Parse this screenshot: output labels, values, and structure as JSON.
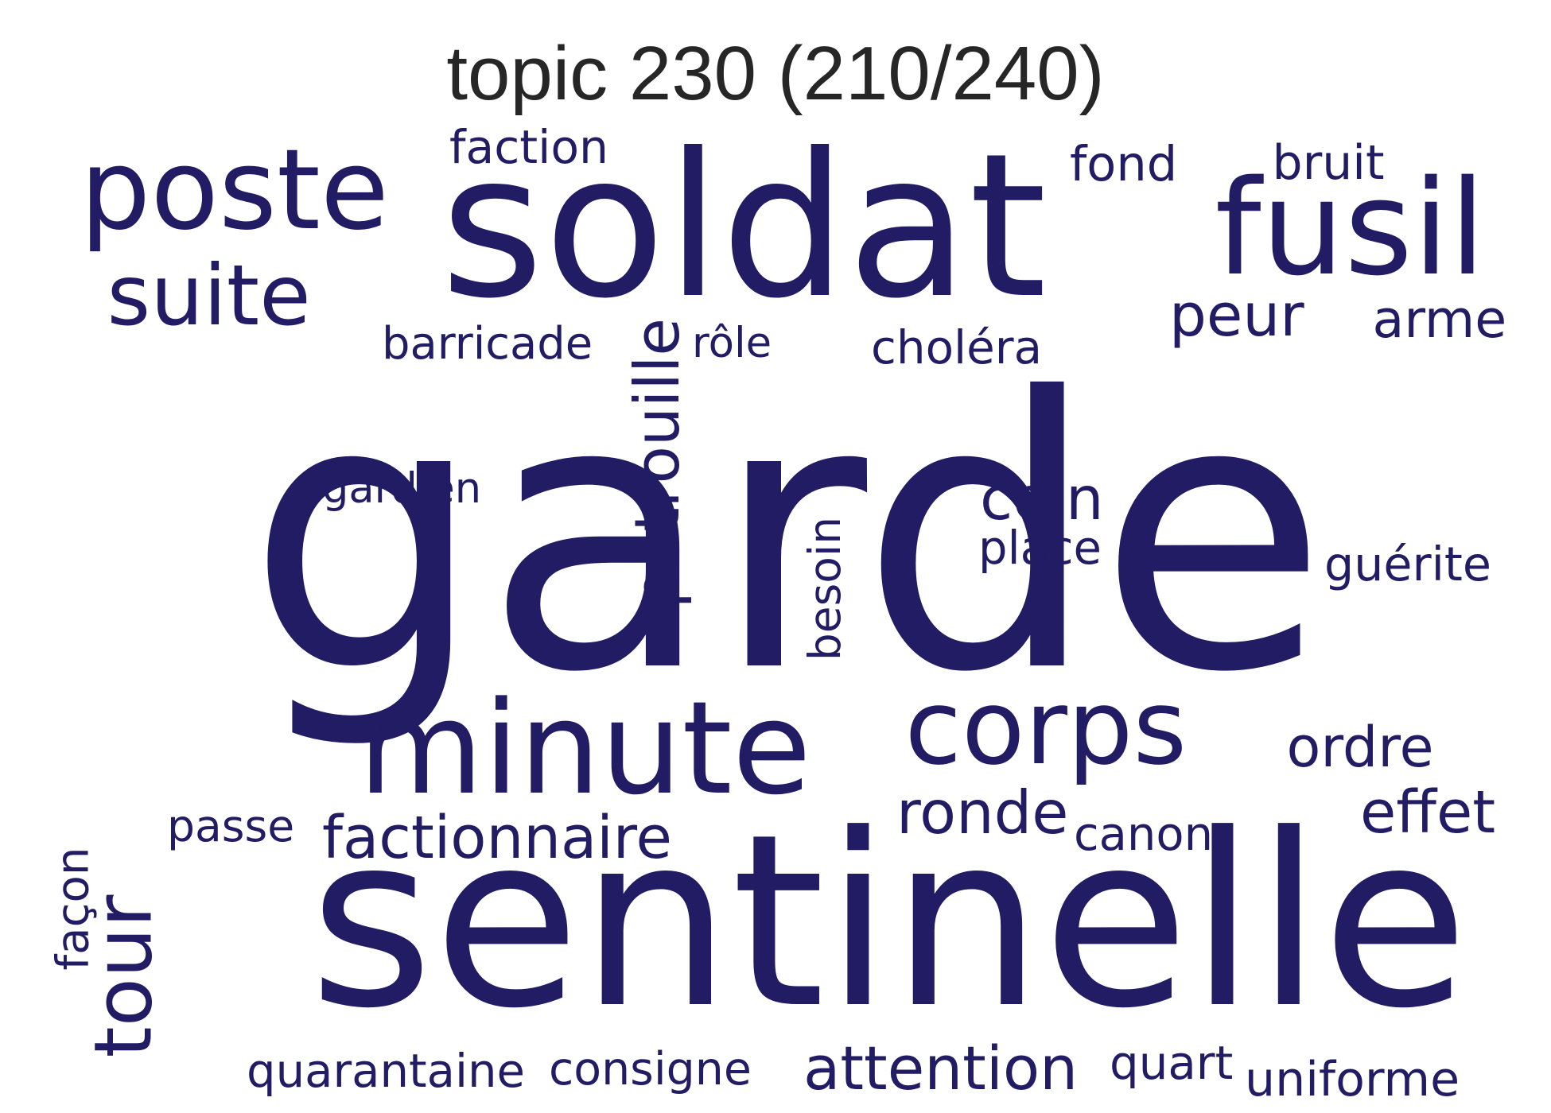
{
  "title": "topic 230 (210/240)",
  "text_color": "#211c63",
  "words": [
    {
      "text": "garde",
      "orientation": "horizontal"
    },
    {
      "text": "soldat",
      "orientation": "horizontal"
    },
    {
      "text": "sentinelle",
      "orientation": "horizontal"
    },
    {
      "text": "poste",
      "orientation": "horizontal"
    },
    {
      "text": "fusil",
      "orientation": "horizontal"
    },
    {
      "text": "minute",
      "orientation": "horizontal"
    },
    {
      "text": "corps",
      "orientation": "horizontal"
    },
    {
      "text": "suite",
      "orientation": "horizontal"
    },
    {
      "text": "tour",
      "orientation": "vertical"
    },
    {
      "text": "patrouille",
      "orientation": "vertical"
    },
    {
      "text": "factionnaire",
      "orientation": "horizontal"
    },
    {
      "text": "ronde",
      "orientation": "horizontal"
    },
    {
      "text": "attention",
      "orientation": "horizontal"
    },
    {
      "text": "ordre",
      "orientation": "horizontal"
    },
    {
      "text": "effet",
      "orientation": "horizontal"
    },
    {
      "text": "peur",
      "orientation": "horizontal"
    },
    {
      "text": "arme",
      "orientation": "horizontal"
    },
    {
      "text": "coin",
      "orientation": "horizontal"
    },
    {
      "text": "place",
      "orientation": "horizontal"
    },
    {
      "text": "barricade",
      "orientation": "horizontal"
    },
    {
      "text": "choléra",
      "orientation": "horizontal"
    },
    {
      "text": "faction",
      "orientation": "horizontal"
    },
    {
      "text": "fond",
      "orientation": "horizontal"
    },
    {
      "text": "bruit",
      "orientation": "horizontal"
    },
    {
      "text": "rôle",
      "orientation": "horizontal"
    },
    {
      "text": "gardien",
      "orientation": "horizontal"
    },
    {
      "text": "besoin",
      "orientation": "vertical"
    },
    {
      "text": "guérite",
      "orientation": "horizontal"
    },
    {
      "text": "passe",
      "orientation": "horizontal"
    },
    {
      "text": "canon",
      "orientation": "horizontal"
    },
    {
      "text": "façon",
      "orientation": "vertical"
    },
    {
      "text": "quarantaine",
      "orientation": "horizontal"
    },
    {
      "text": "consigne",
      "orientation": "horizontal"
    },
    {
      "text": "quart",
      "orientation": "horizontal"
    },
    {
      "text": "uniforme",
      "orientation": "horizontal"
    }
  ]
}
